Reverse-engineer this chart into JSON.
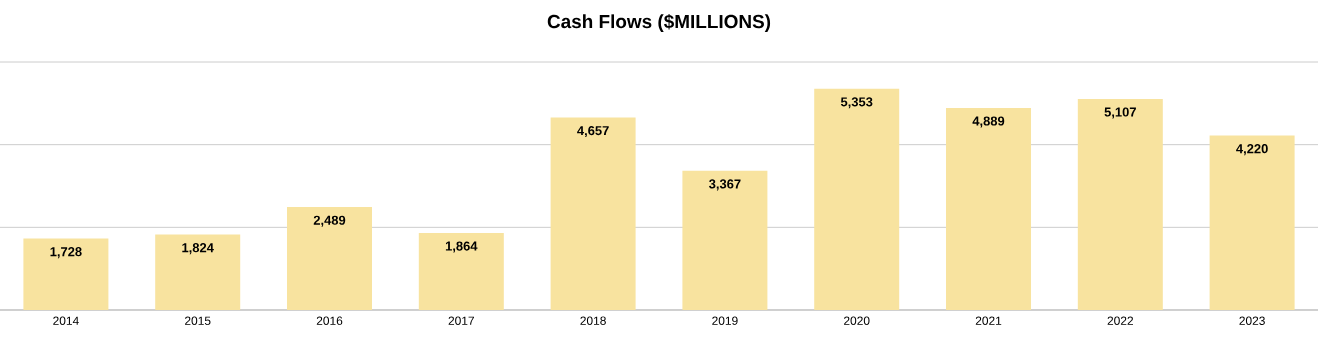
{
  "chart_data": {
    "type": "bar",
    "title": "Cash Flows ($MILLIONS)",
    "categories": [
      "2014",
      "2015",
      "2016",
      "2017",
      "2018",
      "2019",
      "2020",
      "2021",
      "2022",
      "2023"
    ],
    "values": [
      1728,
      1824,
      2489,
      1864,
      4657,
      3367,
      5353,
      4889,
      5107,
      4220
    ],
    "color": "#f8e39f",
    "value_labels": [
      "1,728",
      "1,824",
      "2,489",
      "1,864",
      "4,657",
      "3,367",
      "5,353",
      "4,889",
      "5,107",
      "4,220"
    ],
    "ylim": [
      0,
      6000
    ],
    "yticks": [
      {
        "value": 0,
        "label": null
      },
      {
        "value": 2000,
        "label": null
      },
      {
        "value": 4000,
        "label": null
      },
      {
        "value": 6000,
        "label": null
      }
    ],
    "grid": "y",
    "tick_labels": "x"
  }
}
